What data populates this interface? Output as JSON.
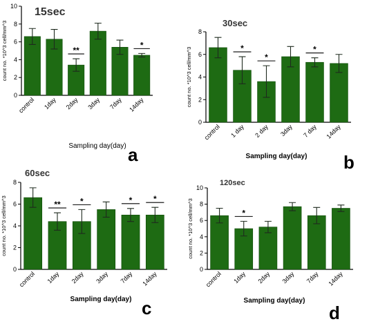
{
  "colors": {
    "bar": "#1e6b13",
    "bar_edge": "#0e4a08",
    "axis": "#000000",
    "error": "#1e2a1e"
  },
  "chart_data": [
    {
      "type": "bar",
      "panel": "a",
      "title": "15sec",
      "ylabel": "count no. *10^3 cell/mm^3",
      "xlabel": "Sampling day(day)",
      "categories": [
        "control",
        "1day",
        "2day",
        "3day",
        "7day",
        "14day"
      ],
      "values": [
        6.6,
        6.3,
        3.4,
        7.2,
        5.4,
        4.5
      ],
      "errors": [
        0.9,
        1.1,
        0.7,
        0.9,
        0.8,
        0.2
      ],
      "ylim": [
        0,
        10
      ],
      "yticks": [
        0,
        2,
        4,
        6,
        8,
        10
      ],
      "ytick_labels": [
        "0",
        "2",
        "4",
        "6",
        "8",
        "10"
      ],
      "significance": [
        {
          "bar": 2,
          "label": "**"
        },
        {
          "bar": 5,
          "label": "*"
        }
      ],
      "grid": false
    },
    {
      "type": "bar",
      "panel": "b",
      "title": "30sec",
      "ylabel": "count no. *10^3 cell/mm^3",
      "xlabel": "Sampling day(day)",
      "categories": [
        "control",
        "1 day",
        "2 day",
        "3day",
        "7 day",
        "14day"
      ],
      "values": [
        6.6,
        4.6,
        3.6,
        5.8,
        5.3,
        5.2
      ],
      "errors": [
        0.9,
        1.2,
        1.4,
        0.9,
        0.4,
        0.8
      ],
      "ylim": [
        0,
        8
      ],
      "yticks": [
        0,
        2,
        4,
        6,
        8
      ],
      "ytick_labels": [
        "0",
        "2",
        "4",
        "6",
        "8"
      ],
      "significance": [
        {
          "bar": 1,
          "label": "*"
        },
        {
          "bar": 2,
          "label": "*"
        },
        {
          "bar": 4,
          "label": "*"
        }
      ],
      "grid": false
    },
    {
      "type": "bar",
      "panel": "c",
      "title": "60sec",
      "ylabel": "count no. *10^3 cell/mm^3",
      "xlabel": "Sampling day(day)",
      "categories": [
        "control",
        "1day",
        "2day",
        "3day",
        "7day",
        "14day"
      ],
      "values": [
        6.6,
        4.4,
        4.4,
        5.5,
        5.0,
        5.0
      ],
      "errors": [
        0.9,
        0.8,
        1.1,
        0.7,
        0.6,
        0.7
      ],
      "ylim": [
        0,
        8
      ],
      "yticks": [
        0,
        2,
        4,
        6,
        8
      ],
      "ytick_labels": [
        "0",
        "2",
        "4",
        "6",
        "8"
      ],
      "significance": [
        {
          "bar": 1,
          "label": "**"
        },
        {
          "bar": 2,
          "label": "*"
        },
        {
          "bar": 4,
          "label": "*"
        },
        {
          "bar": 5,
          "label": "*"
        }
      ],
      "grid": false
    },
    {
      "type": "bar",
      "panel": "d",
      "title": "120sec",
      "ylabel": "count no. *10^3 cell/mm^3",
      "xlabel": "Sampling day(day)",
      "categories": [
        "control",
        "1day",
        "2day",
        "3day",
        "7day",
        "14day"
      ],
      "values": [
        6.6,
        5.0,
        5.2,
        7.7,
        6.6,
        7.5
      ],
      "errors": [
        0.9,
        0.9,
        0.7,
        0.5,
        1.0,
        0.4
      ],
      "ylim": [
        0,
        10
      ],
      "yticks": [
        0,
        2,
        4,
        6,
        8,
        10
      ],
      "ytick_labels": [
        "0",
        "2",
        "4",
        "6",
        "8",
        "10"
      ],
      "significance": [
        {
          "bar": 1,
          "label": "*"
        }
      ],
      "grid": false
    }
  ]
}
